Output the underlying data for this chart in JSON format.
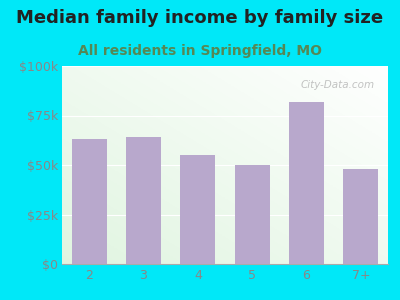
{
  "title": "Median family income by family size",
  "subtitle": "All residents in Springfield, MO",
  "categories": [
    "2",
    "3",
    "4",
    "5",
    "6",
    "7+"
  ],
  "values": [
    63000,
    64000,
    55000,
    50000,
    82000,
    48000
  ],
  "bar_color": "#b8a8cc",
  "background_outer": "#00e8f8",
  "ylim": [
    0,
    100000
  ],
  "yticks": [
    0,
    25000,
    50000,
    75000,
    100000
  ],
  "ytick_labels": [
    "$0",
    "$25k",
    "$50k",
    "$75k",
    "$100k"
  ],
  "title_fontsize": 13,
  "subtitle_fontsize": 10,
  "tick_fontsize": 9,
  "title_color": "#222222",
  "subtitle_color": "#558855",
  "tick_color": "#888888",
  "watermark": "City-Data.com"
}
